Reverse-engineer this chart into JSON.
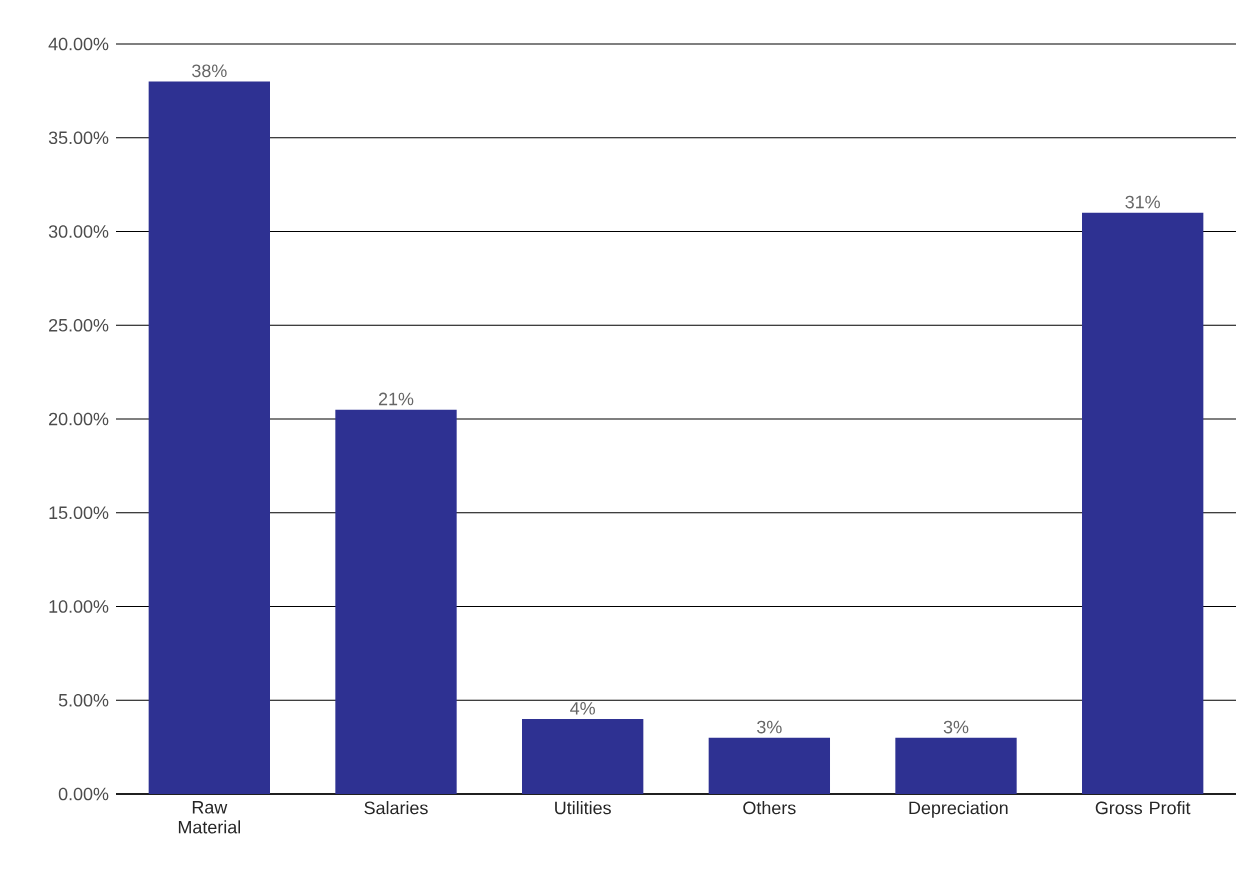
{
  "chart_data": {
    "type": "bar",
    "categories": [
      "Raw Material",
      "Salaries",
      "Utilities",
      "Others",
      "Depreciation",
      "Gross Profit"
    ],
    "values": [
      38,
      20.5,
      4,
      3,
      3,
      31
    ],
    "value_labels": [
      "38%",
      "21%",
      "4%",
      "3%",
      "3%",
      "31%"
    ],
    "color": "#2e3192",
    "ylim": [
      0,
      40
    ],
    "yticks": [
      {
        "value": 0,
        "label": "0.00%"
      },
      {
        "value": 5,
        "label": "5.00%"
      },
      {
        "value": 10,
        "label": "10.00%"
      },
      {
        "value": 15,
        "label": "15.00%"
      },
      {
        "value": 20,
        "label": "20.00%"
      },
      {
        "value": 25,
        "label": "25.00%"
      },
      {
        "value": 30,
        "label": "30.00%"
      },
      {
        "value": 35,
        "label": "35.00%"
      },
      {
        "value": 40,
        "label": "40.00%"
      }
    ],
    "grid": "y"
  }
}
